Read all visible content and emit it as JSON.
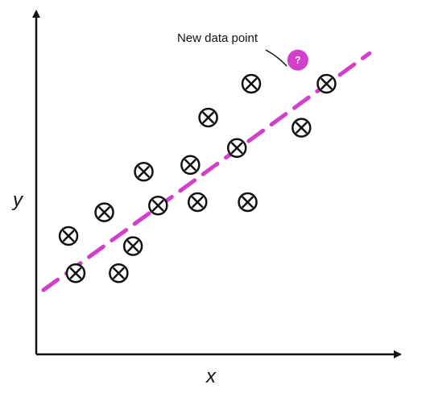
{
  "axes": {
    "x_label": "x",
    "y_label": "y"
  },
  "annotation": {
    "text": "New data point",
    "marker_text": "?"
  },
  "colors": {
    "ink": "#111111",
    "accent": "#d23fc8"
  },
  "icons": {
    "data_point": "circled-x-icon",
    "new_point": "question-mark-badge"
  },
  "chart_data": {
    "type": "scatter",
    "title": "",
    "xlabel": "x",
    "ylabel": "y",
    "grid": false,
    "xlim": [
      0,
      100
    ],
    "ylim": [
      0,
      100
    ],
    "points": [
      {
        "x": 9,
        "y": 35
      },
      {
        "x": 11,
        "y": 24
      },
      {
        "x": 19,
        "y": 42
      },
      {
        "x": 23,
        "y": 24
      },
      {
        "x": 27,
        "y": 32
      },
      {
        "x": 30,
        "y": 54
      },
      {
        "x": 34,
        "y": 44
      },
      {
        "x": 43,
        "y": 56
      },
      {
        "x": 45,
        "y": 45
      },
      {
        "x": 48,
        "y": 70
      },
      {
        "x": 56,
        "y": 61
      },
      {
        "x": 59,
        "y": 45
      },
      {
        "x": 60,
        "y": 80
      },
      {
        "x": 74,
        "y": 67
      },
      {
        "x": 81,
        "y": 80
      }
    ],
    "new_point": {
      "x": 73,
      "y": 87,
      "label": "?"
    },
    "trend_line": {
      "x": [
        2,
        93
      ],
      "y": [
        19,
        89
      ],
      "style": "dashed"
    }
  }
}
